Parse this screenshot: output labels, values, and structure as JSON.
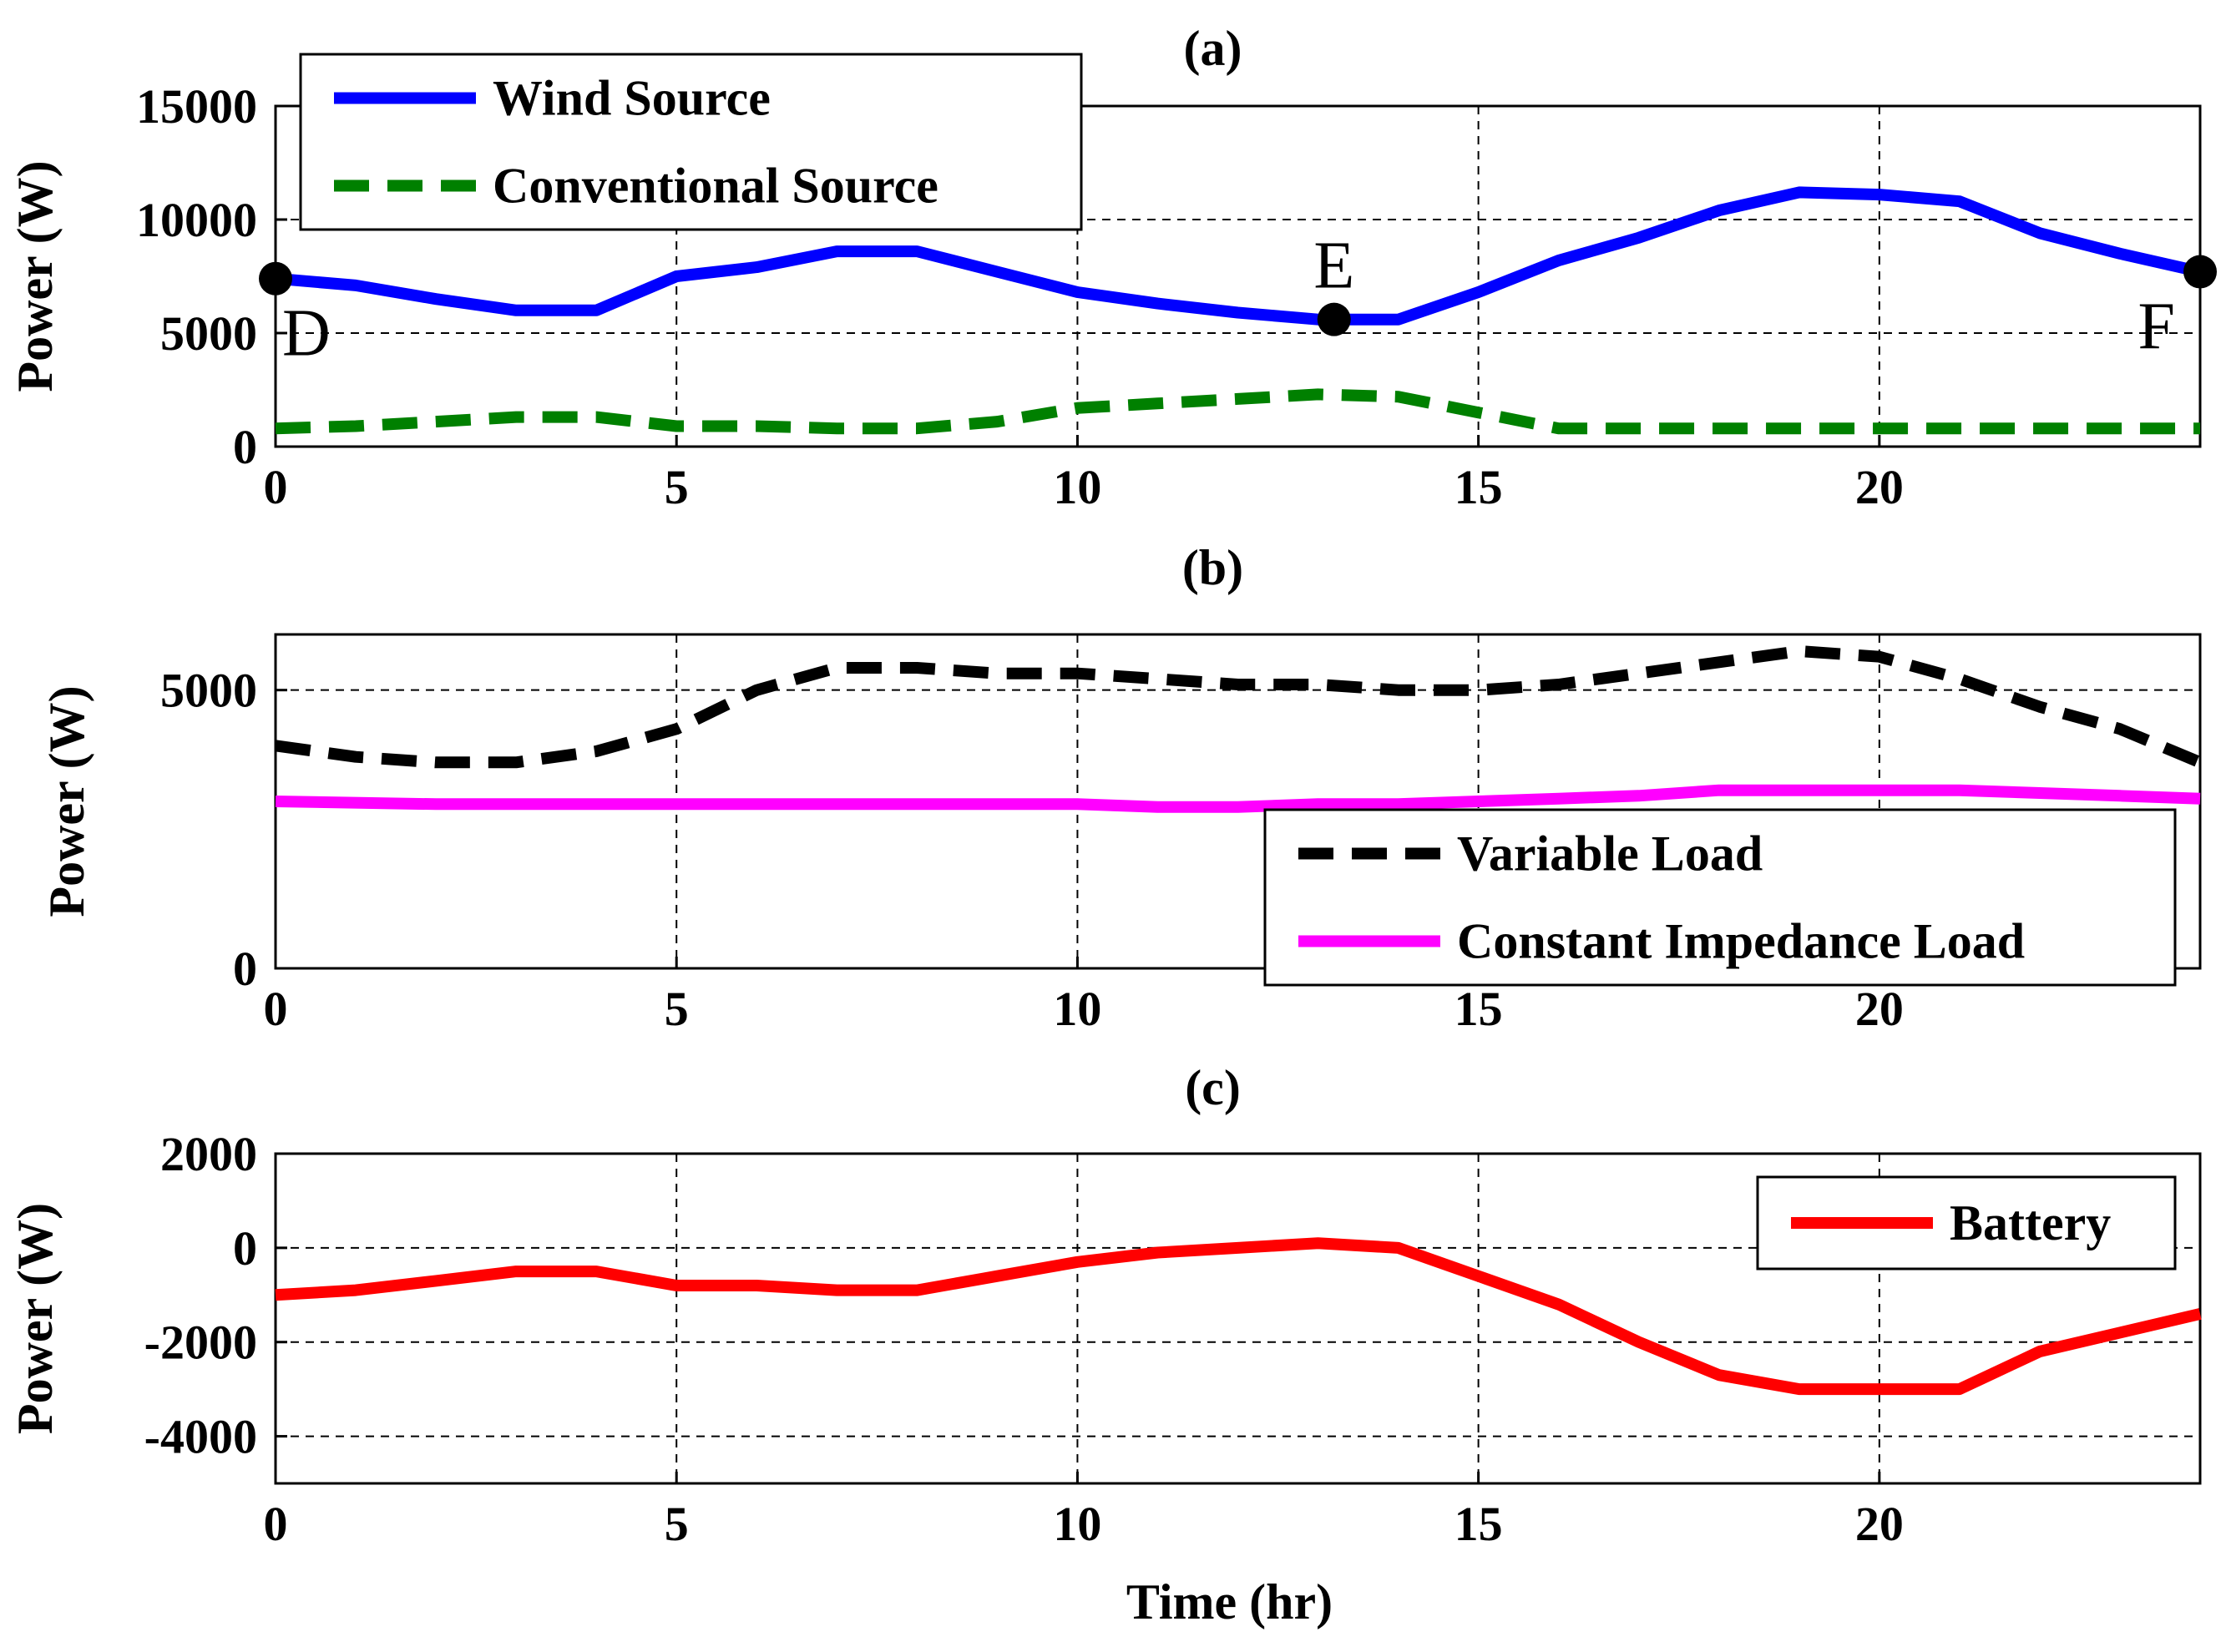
{
  "chart_data": [
    {
      "type": "line",
      "title": "(a)",
      "xlabel": "",
      "ylabel": "Power (W)",
      "xlim": [
        0,
        24
      ],
      "ylim": [
        0,
        15000
      ],
      "xticks": [
        "0",
        "5",
        "10",
        "15",
        "20"
      ],
      "yticks": [
        "0",
        "5000",
        "10000",
        "15000"
      ],
      "grid": true,
      "legend_position": "top-left",
      "series": [
        {
          "name": "Wind Source",
          "color": "#0000ff",
          "style": "solid",
          "x": [
            0,
            1,
            2,
            3,
            4,
            5,
            6,
            7,
            8,
            9,
            10,
            11,
            12,
            13,
            14,
            15,
            16,
            17,
            18,
            19,
            20,
            21,
            22,
            23,
            24
          ],
          "y": [
            7400,
            7100,
            6500,
            6000,
            6000,
            7500,
            7900,
            8600,
            8600,
            7700,
            6800,
            6300,
            5900,
            5600,
            5600,
            6800,
            8200,
            9200,
            10400,
            11200,
            11100,
            10800,
            9400,
            8500,
            7700
          ]
        },
        {
          "name": "Conventional Source",
          "color": "#008000",
          "style": "dashed",
          "x": [
            0,
            1,
            2,
            3,
            4,
            5,
            6,
            7,
            8,
            9,
            10,
            11,
            12,
            13,
            14,
            15,
            16,
            17,
            18,
            19,
            20,
            21,
            22,
            23,
            24
          ],
          "y": [
            800,
            900,
            1100,
            1300,
            1300,
            900,
            900,
            800,
            800,
            1100,
            1700,
            1900,
            2100,
            2300,
            2200,
            1500,
            800,
            800,
            800,
            800,
            800,
            800,
            800,
            800,
            800
          ]
        }
      ],
      "annotations": [
        {
          "label": "D",
          "x": 0,
          "y": 7400
        },
        {
          "label": "E",
          "x": 13.2,
          "y": 5600
        },
        {
          "label": "F",
          "x": 24,
          "y": 7700
        }
      ]
    },
    {
      "type": "line",
      "title": "(b)",
      "xlabel": "",
      "ylabel": "Power (W)",
      "xlim": [
        0,
        24
      ],
      "ylim": [
        0,
        6000
      ],
      "xticks": [
        "0",
        "5",
        "10",
        "15",
        "20"
      ],
      "yticks": [
        "0",
        "5000"
      ],
      "grid": true,
      "legend_position": "bottom-right",
      "series": [
        {
          "name": "Variable Load",
          "color": "#000000",
          "style": "dashed",
          "x": [
            0,
            1,
            2,
            3,
            4,
            5,
            6,
            7,
            8,
            9,
            10,
            11,
            12,
            13,
            14,
            15,
            16,
            17,
            18,
            19,
            20,
            21,
            22,
            23,
            24
          ],
          "y": [
            4000,
            3800,
            3700,
            3700,
            3900,
            4300,
            5000,
            5400,
            5400,
            5300,
            5300,
            5200,
            5100,
            5100,
            5000,
            5000,
            5100,
            5300,
            5500,
            5700,
            5600,
            5200,
            4700,
            4300,
            3700
          ]
        },
        {
          "name": "Constant Impedance Load",
          "color": "#ff00ff",
          "style": "solid",
          "x": [
            0,
            2,
            4,
            6,
            8,
            10,
            11,
            12,
            13,
            14,
            15,
            16,
            17,
            18,
            19,
            20,
            21,
            22,
            23,
            24
          ],
          "y": [
            3000,
            2950,
            2950,
            2950,
            2950,
            2950,
            2900,
            2900,
            2950,
            2950,
            3000,
            3050,
            3100,
            3200,
            3200,
            3200,
            3200,
            3150,
            3100,
            3050
          ]
        }
      ]
    },
    {
      "type": "line",
      "title": "(c)",
      "xlabel": "Time (hr)",
      "ylabel": "Power (W)",
      "xlim": [
        0,
        24
      ],
      "ylim": [
        -5000,
        2000
      ],
      "xticks": [
        "0",
        "5",
        "10",
        "15",
        "20"
      ],
      "yticks": [
        "-4000",
        "-2000",
        "0",
        "2000"
      ],
      "grid": true,
      "legend_position": "top-right",
      "series": [
        {
          "name": "Battery",
          "color": "#ff0000",
          "style": "solid",
          "x": [
            0,
            1,
            2,
            3,
            4,
            5,
            6,
            7,
            8,
            9,
            10,
            11,
            12,
            13,
            14,
            15,
            16,
            17,
            18,
            19,
            20,
            21,
            22,
            23,
            24
          ],
          "y": [
            -1000,
            -900,
            -700,
            -500,
            -500,
            -800,
            -800,
            -900,
            -900,
            -600,
            -300,
            -100,
            0,
            100,
            0,
            -600,
            -1200,
            -2000,
            -2700,
            -3000,
            -3000,
            -3000,
            -2200,
            -1800,
            -1400
          ]
        }
      ]
    }
  ]
}
